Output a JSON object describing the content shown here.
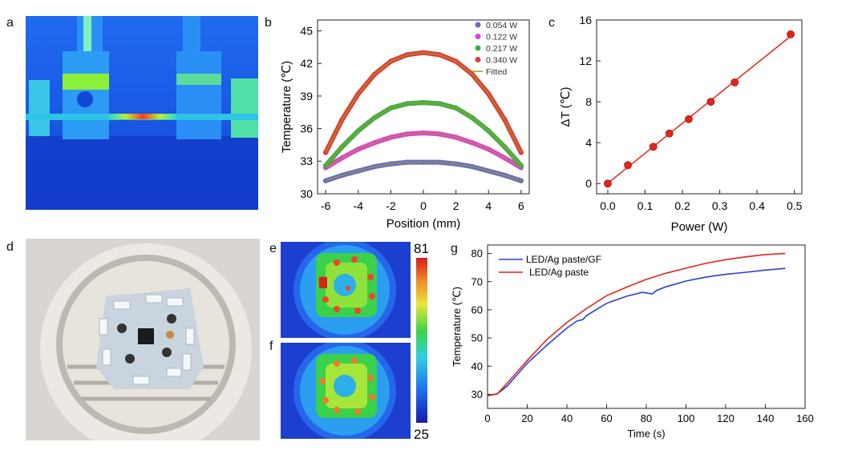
{
  "panels": {
    "a": "a",
    "b": "b",
    "c": "c",
    "d": "d",
    "e": "e",
    "f": "f",
    "g": "g"
  },
  "colorbar": {
    "max": "81",
    "min": "25"
  },
  "colors": {
    "thermal_background": "#1c5fe8",
    "series_b": [
      "#6a6ac8",
      "#e23fd8",
      "#3fae4a",
      "#e23a3a"
    ],
    "fitted_line": "#9aa11c",
    "chart_c": "#e0251b",
    "chart_g": [
      "#2b3fd6",
      "#e0251b"
    ]
  },
  "chart_data": [
    {
      "panel": "b",
      "type": "line",
      "xlabel": "Position (mm)",
      "ylabel": "Temperature (℃)",
      "xlim": [
        -6.5,
        6.5
      ],
      "ylim": [
        30,
        46
      ],
      "xticks": [
        -6,
        -4,
        -2,
        0,
        2,
        4,
        6
      ],
      "yticks": [
        30,
        33,
        36,
        39,
        42,
        45
      ],
      "legend": "top-right",
      "x": [
        -6,
        -5,
        -4,
        -3,
        -2,
        -1,
        0,
        1,
        2,
        3,
        4,
        5,
        6
      ],
      "series": [
        {
          "name": "0.054 W",
          "values": [
            31.2,
            31.7,
            32.1,
            32.5,
            32.75,
            32.9,
            32.9,
            32.9,
            32.75,
            32.5,
            32.1,
            31.7,
            31.2
          ]
        },
        {
          "name": "0.122 W",
          "values": [
            32.4,
            33.3,
            34.1,
            34.7,
            35.2,
            35.5,
            35.6,
            35.5,
            35.2,
            34.7,
            34.1,
            33.3,
            32.4
          ]
        },
        {
          "name": "0.217 W",
          "values": [
            32.6,
            34.3,
            35.8,
            37.0,
            37.9,
            38.3,
            38.4,
            38.3,
            37.9,
            37.0,
            35.8,
            34.3,
            32.6
          ]
        },
        {
          "name": "0.340 W",
          "values": [
            33.8,
            36.8,
            39.2,
            41.0,
            42.2,
            42.8,
            43.0,
            42.8,
            42.2,
            41.0,
            39.2,
            36.8,
            33.8
          ]
        }
      ],
      "fitted_label": "Fitted"
    },
    {
      "panel": "c",
      "type": "scatter",
      "xlabel": "Power (W)",
      "ylabel": "ΔT (℃)",
      "xlim": [
        -0.03,
        0.52
      ],
      "ylim": [
        -1,
        16
      ],
      "xticks": [
        0.0,
        0.1,
        0.2,
        0.3,
        0.4,
        0.5
      ],
      "xtick_labels": [
        "0.0",
        "0.1",
        "0.2",
        "0.3",
        "0.4",
        "0.5"
      ],
      "yticks": [
        0,
        4,
        8,
        12,
        16
      ],
      "x": [
        0.0,
        0.054,
        0.122,
        0.165,
        0.217,
        0.276,
        0.34,
        0.49
      ],
      "y": [
        0.0,
        1.8,
        3.6,
        4.9,
        6.3,
        8.0,
        9.9,
        14.6
      ],
      "fit_line": true
    },
    {
      "panel": "g",
      "type": "line",
      "xlabel": "Time (s)",
      "ylabel": "Temperature (℃)",
      "xlim": [
        0,
        160
      ],
      "ylim": [
        25,
        83
      ],
      "xticks": [
        0,
        20,
        40,
        60,
        80,
        100,
        120,
        140,
        160
      ],
      "yticks": [
        30,
        40,
        50,
        60,
        70,
        80
      ],
      "legend": "top-left",
      "series": [
        {
          "name": "LED/Ag paste/GF",
          "x": [
            0,
            5,
            10,
            20,
            30,
            40,
            45,
            48,
            50,
            60,
            70,
            78,
            80,
            83,
            85,
            90,
            100,
            110,
            120,
            130,
            140,
            150
          ],
          "y": [
            29.5,
            30.2,
            33,
            41,
            47.5,
            53.5,
            56,
            56.5,
            58,
            62.3,
            64.8,
            66.2,
            66.0,
            65.6,
            66.8,
            68.2,
            70.2,
            71.6,
            72.6,
            73.3,
            74.1,
            74.7
          ]
        },
        {
          "name": "LED/Ag paste",
          "x": [
            0,
            5,
            10,
            20,
            30,
            40,
            50,
            60,
            70,
            80,
            90,
            100,
            110,
            120,
            130,
            140,
            150
          ],
          "y": [
            29.5,
            30.2,
            34,
            42,
            49.5,
            55.5,
            60.5,
            65,
            68,
            70.8,
            73,
            74.8,
            76.5,
            77.8,
            78.8,
            79.6,
            80.0
          ]
        }
      ]
    }
  ]
}
